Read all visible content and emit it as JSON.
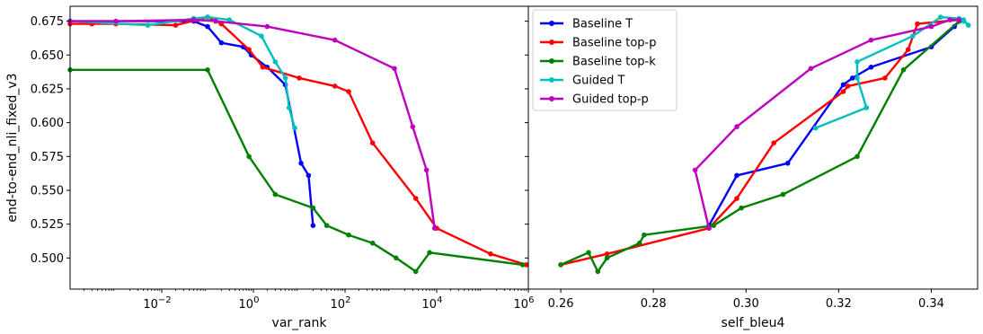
{
  "chart_data": [
    {
      "type": "line",
      "xlabel": "var_rank",
      "ylabel": "end-to-end_nli_fixed_v3",
      "xscale": "log",
      "xlim": [
        0.0001,
        1000000
      ],
      "ylim": [
        0.477,
        0.686
      ],
      "x_ticks": [
        0.01,
        1,
        100,
        10000,
        1000000
      ],
      "x_tick_labels": [
        {
          "base": "10",
          "exp": "−2"
        },
        {
          "base": "10",
          "exp": "0"
        },
        {
          "base": "10",
          "exp": "2"
        },
        {
          "base": "10",
          "exp": "4"
        },
        {
          "base": "10",
          "exp": "6"
        }
      ],
      "grid": false,
      "series": [
        {
          "name": "Baseline T",
          "color": "#0000ff",
          "points": [
            [
              0.0001,
              0.675
            ],
            [
              0.05,
              0.675
            ],
            [
              0.1,
              0.671
            ],
            [
              0.2,
              0.659
            ],
            [
              0.6,
              0.656
            ],
            [
              0.9,
              0.65
            ],
            [
              2.0,
              0.641
            ],
            [
              5.0,
              0.628
            ],
            [
              11,
              0.57
            ],
            [
              16,
              0.561
            ],
            [
              20,
              0.524
            ]
          ]
        },
        {
          "name": "Baseline top-p",
          "color": "#ff0000",
          "points": [
            [
              0.0001,
              0.673
            ],
            [
              0.0003,
              0.673
            ],
            [
              0.001,
              0.673
            ],
            [
              0.02,
              0.672
            ],
            [
              0.06,
              0.676
            ],
            [
              0.1,
              0.678
            ],
            [
              0.2,
              0.673
            ],
            [
              0.8,
              0.654
            ],
            [
              1.6,
              0.641
            ],
            [
              10,
              0.633
            ],
            [
              60,
              0.627
            ],
            [
              120,
              0.623
            ],
            [
              400,
              0.585
            ],
            [
              3500,
              0.544
            ],
            [
              10000,
              0.522
            ],
            [
              150000,
              0.503
            ],
            [
              900000,
              0.495
            ]
          ]
        },
        {
          "name": "Baseline top-k",
          "color": "#008000",
          "points": [
            [
              0.0001,
              0.639
            ],
            [
              0.1,
              0.639
            ],
            [
              0.8,
              0.575
            ],
            [
              3.0,
              0.547
            ],
            [
              20,
              0.537
            ],
            [
              40,
              0.524
            ],
            [
              120,
              0.517
            ],
            [
              400,
              0.511
            ],
            [
              1300,
              0.5
            ],
            [
              3500,
              0.49
            ],
            [
              7000,
              0.504
            ],
            [
              750000,
              0.495
            ]
          ]
        },
        {
          "name": "Guided T",
          "color": "#00bfbf",
          "points": [
            [
              0.0001,
              0.675
            ],
            [
              0.005,
              0.672
            ],
            [
              0.05,
              0.677
            ],
            [
              0.1,
              0.678
            ],
            [
              0.3,
              0.676
            ],
            [
              1.5,
              0.664
            ],
            [
              3.0,
              0.645
            ],
            [
              5.0,
              0.633
            ],
            [
              6.0,
              0.611
            ],
            [
              8.0,
              0.596
            ]
          ]
        },
        {
          "name": "Guided top-p",
          "color": "#bf00bf",
          "points": [
            [
              0.0001,
              0.675
            ],
            [
              0.001,
              0.675
            ],
            [
              0.05,
              0.676
            ],
            [
              0.15,
              0.675
            ],
            [
              2.0,
              0.671
            ],
            [
              60,
              0.661
            ],
            [
              1200,
              0.64
            ],
            [
              3000,
              0.597
            ],
            [
              6000,
              0.565
            ],
            [
              9000,
              0.522
            ]
          ]
        }
      ]
    },
    {
      "type": "line",
      "xlabel": "self_bleu4",
      "xlim": [
        0.253,
        0.35
      ],
      "ylim": [
        0.477,
        0.686
      ],
      "x_ticks": [
        0.26,
        0.28,
        0.3,
        0.32,
        0.34
      ],
      "x_tick_labels": [
        "0.26",
        "0.28",
        "0.30",
        "0.32",
        "0.34"
      ],
      "grid": false,
      "legend": {
        "placement": "top-left",
        "entries": [
          "Baseline T",
          "Baseline top-p",
          "Baseline top-k",
          "Guided T",
          "Guided top-p"
        ]
      },
      "series": [
        {
          "name": "Baseline T",
          "color": "#0000ff",
          "points": [
            [
              0.292,
              0.524
            ],
            [
              0.298,
              0.561
            ],
            [
              0.309,
              0.57
            ],
            [
              0.321,
              0.628
            ],
            [
              0.323,
              0.633
            ],
            [
              0.327,
              0.641
            ],
            [
              0.34,
              0.656
            ],
            [
              0.345,
              0.671
            ],
            [
              0.346,
              0.675
            ]
          ]
        },
        {
          "name": "Baseline top-p",
          "color": "#ff0000",
          "points": [
            [
              0.26,
              0.495
            ],
            [
              0.27,
              0.503
            ],
            [
              0.292,
              0.522
            ],
            [
              0.298,
              0.544
            ],
            [
              0.306,
              0.585
            ],
            [
              0.321,
              0.623
            ],
            [
              0.322,
              0.627
            ],
            [
              0.33,
              0.633
            ],
            [
              0.335,
              0.654
            ],
            [
              0.337,
              0.673
            ],
            [
              0.346,
              0.676
            ]
          ]
        },
        {
          "name": "Baseline top-k",
          "color": "#008000",
          "points": [
            [
              0.26,
              0.495
            ],
            [
              0.266,
              0.504
            ],
            [
              0.268,
              0.49
            ],
            [
              0.27,
              0.5
            ],
            [
              0.277,
              0.511
            ],
            [
              0.278,
              0.517
            ],
            [
              0.293,
              0.524
            ],
            [
              0.299,
              0.537
            ],
            [
              0.308,
              0.547
            ],
            [
              0.324,
              0.575
            ],
            [
              0.334,
              0.639
            ],
            [
              0.346,
              0.675
            ]
          ]
        },
        {
          "name": "Guided T",
          "color": "#00bfbf",
          "points": [
            [
              0.315,
              0.596
            ],
            [
              0.326,
              0.611
            ],
            [
              0.324,
              0.633
            ],
            [
              0.324,
              0.645
            ],
            [
              0.336,
              0.664
            ],
            [
              0.342,
              0.678
            ],
            [
              0.346,
              0.677
            ],
            [
              0.347,
              0.676
            ],
            [
              0.348,
              0.672
            ],
            [
              0.347,
              0.675
            ]
          ]
        },
        {
          "name": "Guided top-p",
          "color": "#bf00bf",
          "points": [
            [
              0.292,
              0.522
            ],
            [
              0.289,
              0.565
            ],
            [
              0.298,
              0.597
            ],
            [
              0.314,
              0.64
            ],
            [
              0.327,
              0.661
            ],
            [
              0.34,
              0.671
            ],
            [
              0.344,
              0.676
            ],
            [
              0.346,
              0.676
            ]
          ]
        }
      ]
    }
  ]
}
